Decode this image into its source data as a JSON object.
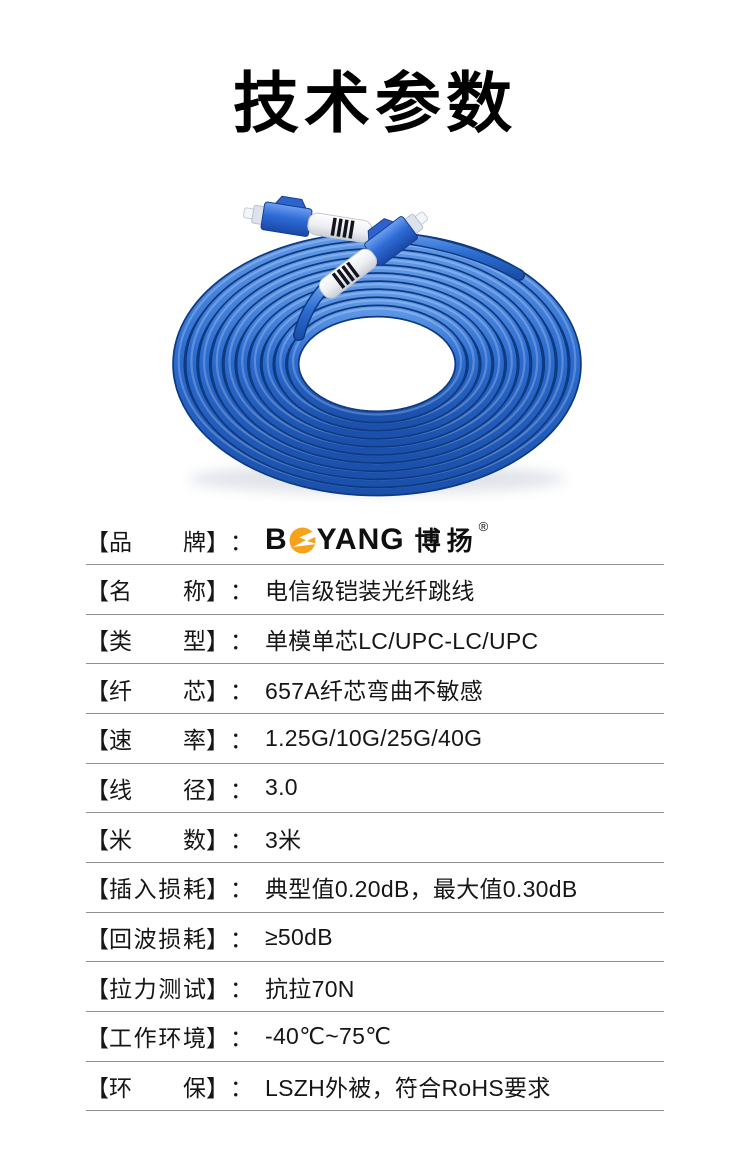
{
  "title": "技术参数",
  "brand": {
    "latin_first": "B",
    "latin_rest": "YANG",
    "cn": "博扬",
    "registered": "®"
  },
  "specs": {
    "bracket_open": "【",
    "bracket_close": "】",
    "colon": "：",
    "rows": [
      {
        "label": "品牌",
        "value": ""
      },
      {
        "label": "名称",
        "value": "电信级铠装光纤跳线"
      },
      {
        "label": "类型",
        "value": "单模单芯LC/UPC-LC/UPC"
      },
      {
        "label": "纤芯",
        "value": "657A纤芯弯曲不敏感"
      },
      {
        "label": "速率",
        "value": "1.25G/10G/25G/40G"
      },
      {
        "label": "线径",
        "value": "3.0"
      },
      {
        "label": "米数",
        "value": "3米"
      },
      {
        "label": "插入损耗",
        "value": "典型值0.20dB，最大值0.30dB"
      },
      {
        "label": "回波损耗",
        "value": "≥50dB"
      },
      {
        "label": "拉力测试",
        "value": "抗拉70N"
      },
      {
        "label": "工作环境",
        "value": "-40℃~75℃"
      },
      {
        "label": "环保",
        "value": "LSZH外被，符合RoHS要求"
      }
    ]
  },
  "colors": {
    "title_text": "#000000",
    "body_text": "#161616",
    "divider": "#8f8f8f",
    "logo_orange": "#f6a21b",
    "cable_blue": "#2d6dd0",
    "cable_blue_dark": "#0e3a80",
    "cable_highlight": "#6fa3ea",
    "connector_body_blue": "#2e6bd6",
    "connector_boot_white": "#eceef2"
  }
}
